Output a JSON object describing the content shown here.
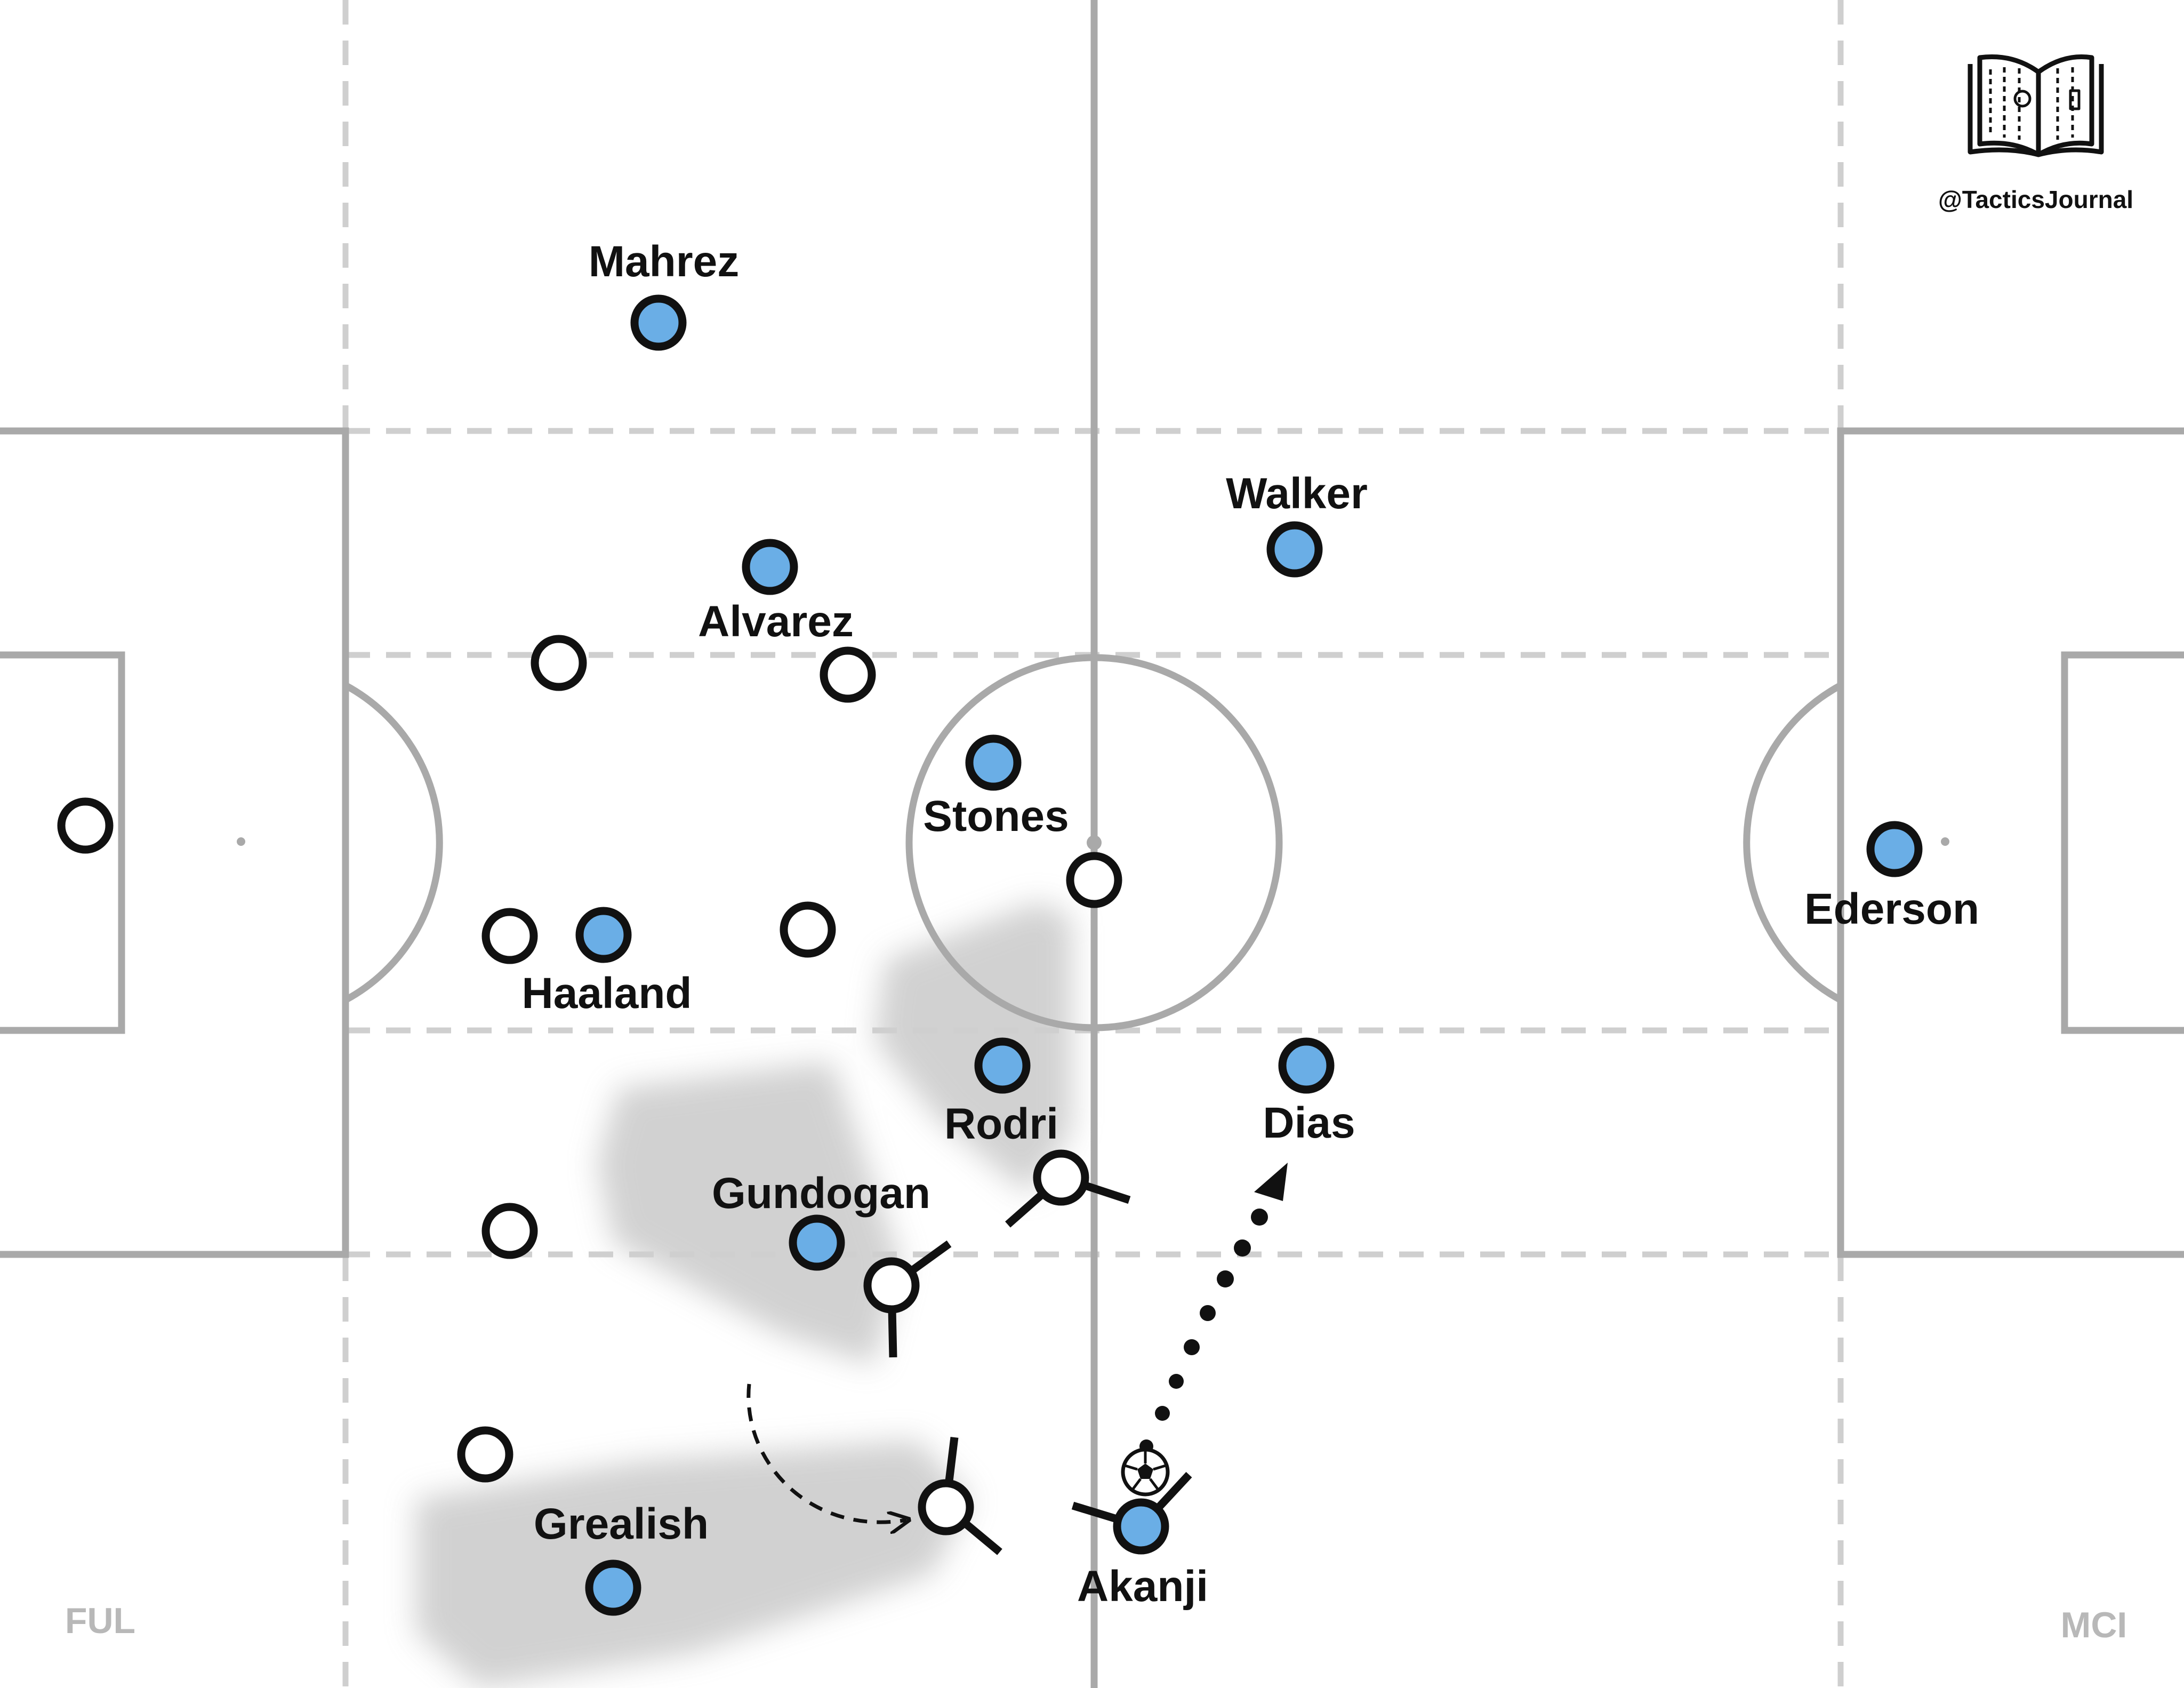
{
  "branding": {
    "handle": "@TacticsJournal",
    "logo_icon": "open-book-pitch-icon"
  },
  "teams": {
    "left": "FUL",
    "right": "MCI"
  },
  "colors": {
    "home_fill": "#6aaee6",
    "away_fill": "#ffffff",
    "outline": "#111111",
    "pitch_line": "#a9a9a9",
    "zone_line": "#cfcfcf",
    "shadow": "#c8c8c8"
  },
  "players": [
    {
      "id": "mahrez",
      "name": "Mahrez",
      "team": "home"
    },
    {
      "id": "walker",
      "name": "Walker",
      "team": "home"
    },
    {
      "id": "alvarez",
      "name": "Alvarez",
      "team": "home"
    },
    {
      "id": "stones",
      "name": "Stones",
      "team": "home"
    },
    {
      "id": "ederson",
      "name": "Ederson",
      "team": "home"
    },
    {
      "id": "haaland",
      "name": "Haaland",
      "team": "home"
    },
    {
      "id": "rodri",
      "name": "Rodri",
      "team": "home"
    },
    {
      "id": "dias",
      "name": "Dias",
      "team": "home"
    },
    {
      "id": "gundogan",
      "name": "Gundogan",
      "team": "home"
    },
    {
      "id": "grealish",
      "name": "Grealish",
      "team": "home"
    },
    {
      "id": "akanji",
      "name": "Akanji",
      "team": "home"
    }
  ],
  "ball_icon": "football-icon"
}
